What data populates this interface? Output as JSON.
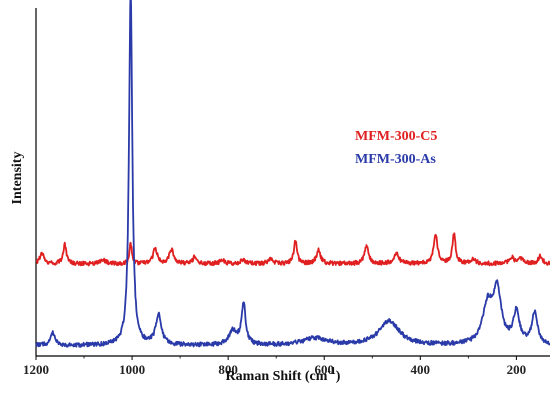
{
  "chart_data": {
    "type": "line",
    "xlabel": "Raman Shift  (cm",
    "xlabel_sup": "-1",
    "xlabel_suffix": ")",
    "ylabel": "Intensity",
    "xlim": [
      1200,
      130
    ],
    "x_reversed": true,
    "ylim": [
      0,
      1
    ],
    "x_ticks": [
      1200,
      1000,
      800,
      600,
      400,
      200
    ],
    "grid": false,
    "legend": "upper-right",
    "series": [
      {
        "name": "MFM-300-C5",
        "color": "#e02020",
        "baseline": 0.265,
        "peaks": [
          [
            1188,
            0.03,
            5
          ],
          [
            1140,
            0.055,
            4
          ],
          [
            1060,
            0.01,
            7
          ],
          [
            1003,
            0.06,
            3
          ],
          [
            952,
            0.045,
            5
          ],
          [
            918,
            0.04,
            6
          ],
          [
            870,
            0.02,
            4
          ],
          [
            812,
            0.01,
            6
          ],
          [
            770,
            0.012,
            6
          ],
          [
            712,
            0.012,
            6
          ],
          [
            660,
            0.065,
            4
          ],
          [
            612,
            0.04,
            5
          ],
          [
            512,
            0.05,
            5
          ],
          [
            450,
            0.03,
            6
          ],
          [
            368,
            0.08,
            5
          ],
          [
            330,
            0.085,
            4
          ],
          [
            290,
            0.012,
            6
          ],
          [
            210,
            0.02,
            5
          ],
          [
            190,
            0.015,
            6
          ],
          [
            150,
            0.022,
            5
          ]
        ]
      },
      {
        "name": "MFM-300-As",
        "color": "#2a3aa8",
        "baseline": 0.03,
        "peaks": [
          [
            1165,
            0.035,
            6
          ],
          [
            1003,
            1.03,
            4
          ],
          [
            945,
            0.085,
            7
          ],
          [
            790,
            0.04,
            10
          ],
          [
            768,
            0.12,
            5
          ],
          [
            620,
            0.02,
            30
          ],
          [
            465,
            0.07,
            25
          ],
          [
            260,
            0.11,
            12
          ],
          [
            240,
            0.15,
            10
          ],
          [
            200,
            0.09,
            8
          ],
          [
            162,
            0.09,
            7
          ]
        ]
      }
    ]
  }
}
